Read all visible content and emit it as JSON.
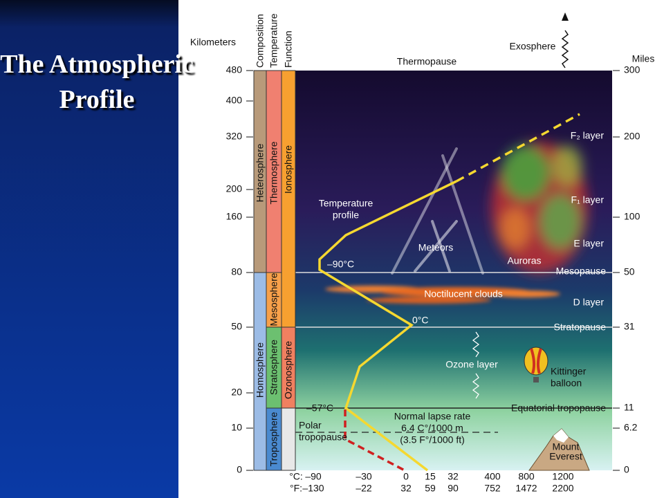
{
  "slide": {
    "title": "The Atmospheric Profile"
  },
  "diagram": {
    "headers": {
      "kilometers": "Kilometers",
      "composition": "Composition",
      "temperature": "Temperature",
      "function": "Function",
      "miles": "Miles"
    },
    "km_ticks": [
      "480",
      "400",
      "320",
      "200",
      "160",
      "80",
      "50",
      "20",
      "10",
      "0"
    ],
    "mile_ticks": [
      "300",
      "200",
      "100",
      "50",
      "31",
      "11",
      "6.2",
      "0"
    ],
    "celsius_ticks": [
      "°C:",
      "–90",
      "–30",
      "0",
      "15",
      "32",
      "400",
      "800",
      "1200"
    ],
    "fahrenheit_ticks": [
      "°F:",
      "–130",
      "–22",
      "32",
      "59",
      "90",
      "752",
      "1472",
      "2200"
    ],
    "composition_layers": [
      "Heterosphere",
      "Homosphere"
    ],
    "temperature_layers": [
      "Thermosphere",
      "Mesosphere",
      "Stratosphere",
      "Troposphere"
    ],
    "function_layers": [
      "Ionosphere",
      "Ozonosphere"
    ],
    "labels": {
      "thermopause": "Thermopause",
      "exosphere": "Exosphere",
      "f2_layer": "F₂ layer",
      "f1_layer": "F₁ layer",
      "e_layer": "E layer",
      "d_layer": "D layer",
      "temperature_profile": [
        "Temperature",
        "profile"
      ],
      "meteors": "Meteors",
      "auroras": "Auroras",
      "mesopause": "Mesopause",
      "minus90": "–90°C",
      "noctilucent": "Noctilucent clouds",
      "zero": "0°C",
      "stratopause": "Stratopause",
      "ozone": "Ozone layer",
      "kittinger": [
        "Kittinger",
        "balloon"
      ],
      "minus57": "–57°C",
      "equatorial": "Equatorial tropopause",
      "lapse_rate": [
        "Normal lapse rate",
        "6.4 C°/1000 m",
        "(3.5 F°/1000 ft)"
      ],
      "polar": [
        "Polar",
        "tropopause"
      ],
      "everest": [
        "Mount",
        "Everest"
      ]
    }
  }
}
